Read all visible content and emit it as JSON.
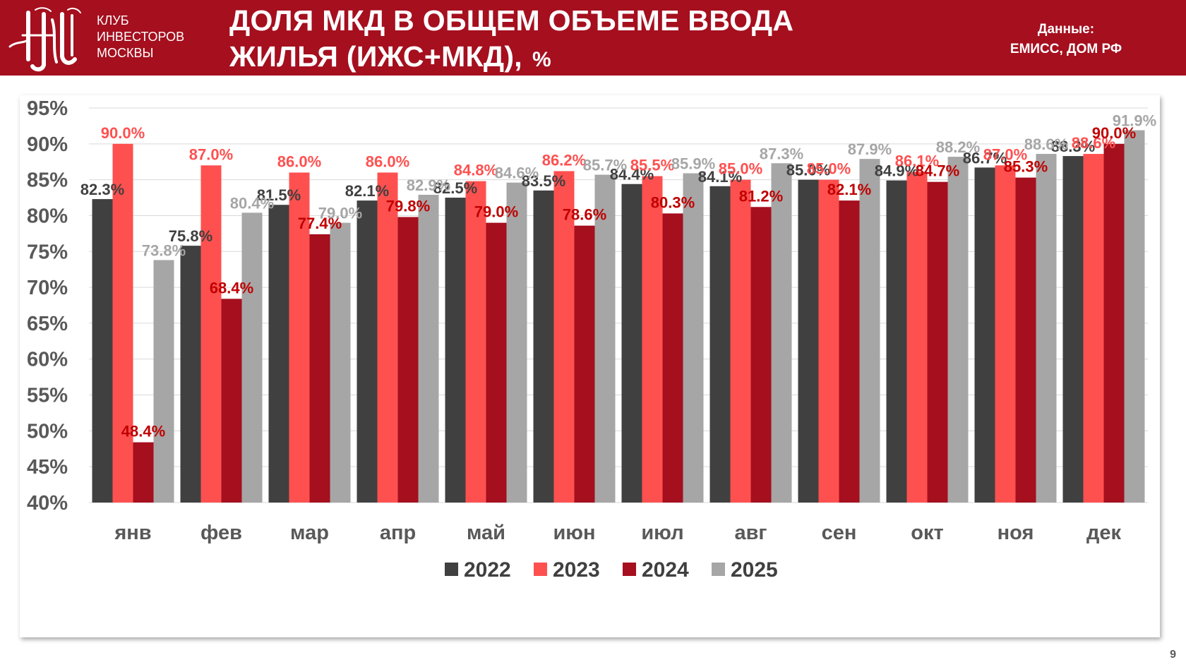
{
  "header": {
    "logo_lines": [
      "КЛУБ",
      "ИНВЕСТОРОВ",
      "МОСКВЫ"
    ],
    "title_line1": "ДОЛЯ МКД В ОБЩЕМ ОБЪЕМЕ ВВОДА",
    "title_line2": "ЖИЛЬЯ (ИЖС+МКД),",
    "title_unit": "%",
    "source_line1": "Данные:",
    "source_line2": "ЕМИСС, ДОМ РФ",
    "logo_icon": "club-monogram-logo"
  },
  "page_number": "9",
  "colors": {
    "header_bg": "#a50f1e",
    "s2022": "#404040",
    "s2023": "#ff5050",
    "s2024": "#a50f1e",
    "s2025": "#a6a6a6"
  },
  "chart_data": {
    "type": "bar",
    "title": "ДОЛЯ МКД В ОБЩЕМ ОБЪЕМЕ ВВОДА ЖИЛЬЯ (ИЖС+МКД), %",
    "xlabel": "",
    "ylabel": "",
    "ylim": [
      40,
      95
    ],
    "yticks": [
      "40%",
      "45%",
      "50%",
      "55%",
      "60%",
      "65%",
      "70%",
      "75%",
      "80%",
      "85%",
      "90%",
      "95%"
    ],
    "grid": true,
    "legend": "bottom",
    "categories": [
      "янв",
      "фев",
      "мар",
      "апр",
      "май",
      "июн",
      "июл",
      "авг",
      "сен",
      "окт",
      "ноя",
      "дек"
    ],
    "series": [
      {
        "name": "2022",
        "color": "#404040",
        "label_color": "#404040",
        "values": [
          82.3,
          75.8,
          81.5,
          82.1,
          82.5,
          83.5,
          84.4,
          84.1,
          85.0,
          84.9,
          86.7,
          88.3
        ],
        "labels": [
          "82.3%",
          "75.8%",
          "81.5%",
          "82.1%",
          "82.5%",
          "83.5%",
          "84.4%",
          "84.1%",
          "85.0%",
          "84.9%",
          "86.7%",
          "88.3%"
        ]
      },
      {
        "name": "2023",
        "color": "#ff5050",
        "label_color": "#ff5050",
        "values": [
          90.0,
          87.0,
          86.0,
          86.0,
          84.8,
          86.2,
          85.5,
          85.0,
          85.0,
          86.1,
          87.0,
          88.6
        ],
        "labels": [
          "90.0%",
          "87.0%",
          "86.0%",
          "86.0%",
          "84.8%",
          "86.2%",
          "85.5%",
          "85.0%",
          "85.0%",
          "86.1%",
          "87.0%",
          "88.6%"
        ]
      },
      {
        "name": "2024",
        "color": "#a50f1e",
        "label_color": "#c00000",
        "values": [
          48.4,
          68.4,
          77.4,
          79.8,
          79.0,
          78.6,
          80.3,
          81.2,
          82.1,
          84.7,
          85.3,
          90.0
        ],
        "labels": [
          "48.4%",
          "68.4%",
          "77.4%",
          "79.8%",
          "79.0%",
          "78.6%",
          "80.3%",
          "81.2%",
          "82.1%",
          "84.7%",
          "85.3%",
          "90.0%"
        ]
      },
      {
        "name": "2025",
        "color": "#a6a6a6",
        "label_color": "#a6a6a6",
        "values": [
          73.8,
          80.4,
          79.0,
          82.9,
          84.6,
          85.7,
          85.9,
          87.3,
          87.9,
          88.2,
          88.6,
          91.9
        ],
        "labels": [
          "73.8%",
          "80.4%",
          "79.0%",
          "82.9%",
          "84.6%",
          "85.7%",
          "85.9%",
          "87.3%",
          "87.9%",
          "88.2%",
          "88.6%",
          "91.9%"
        ]
      }
    ]
  }
}
